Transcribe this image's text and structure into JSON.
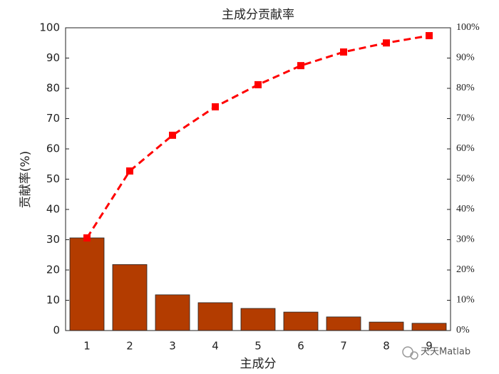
{
  "chart_data": {
    "type": "bar",
    "title": "主成分贡献率",
    "xlabel": "主成分",
    "ylabel": "贡献率(%)",
    "categories": [
      "1",
      "2",
      "3",
      "4",
      "5",
      "6",
      "7",
      "8",
      "9"
    ],
    "series": [
      {
        "color": "#b33c00",
        "values": [
          30.6,
          21.8,
          11.8,
          9.2,
          7.3,
          6.1,
          4.5,
          2.8,
          2.4
        ]
      },
      {
        "type": "line",
        "axis": "y2",
        "color": "#ff0000",
        "values": [
          30.6,
          52.7,
          64.5,
          73.9,
          81.2,
          87.5,
          92.0,
          95.0,
          97.4
        ]
      }
    ],
    "ylim": [
      0,
      100
    ],
    "yticks": [
      0,
      10,
      20,
      30,
      40,
      50,
      60,
      70,
      80,
      90,
      100
    ],
    "y2lim": [
      0,
      100
    ],
    "y2ticks": [
      {
        "value": 0,
        "label": "0%"
      },
      {
        "value": 10,
        "label": "10%"
      },
      {
        "value": 20,
        "label": "20%"
      },
      {
        "value": 30,
        "label": "30%"
      },
      {
        "value": 40,
        "label": "40%"
      },
      {
        "value": 50,
        "label": "50%"
      },
      {
        "value": 60,
        "label": "60%"
      },
      {
        "value": 70,
        "label": "70%"
      },
      {
        "value": 80,
        "label": "80%"
      },
      {
        "value": 90,
        "label": "90%"
      },
      {
        "value": 100,
        "label": "100%"
      }
    ],
    "grid": false
  },
  "watermark": "天天Matlab"
}
